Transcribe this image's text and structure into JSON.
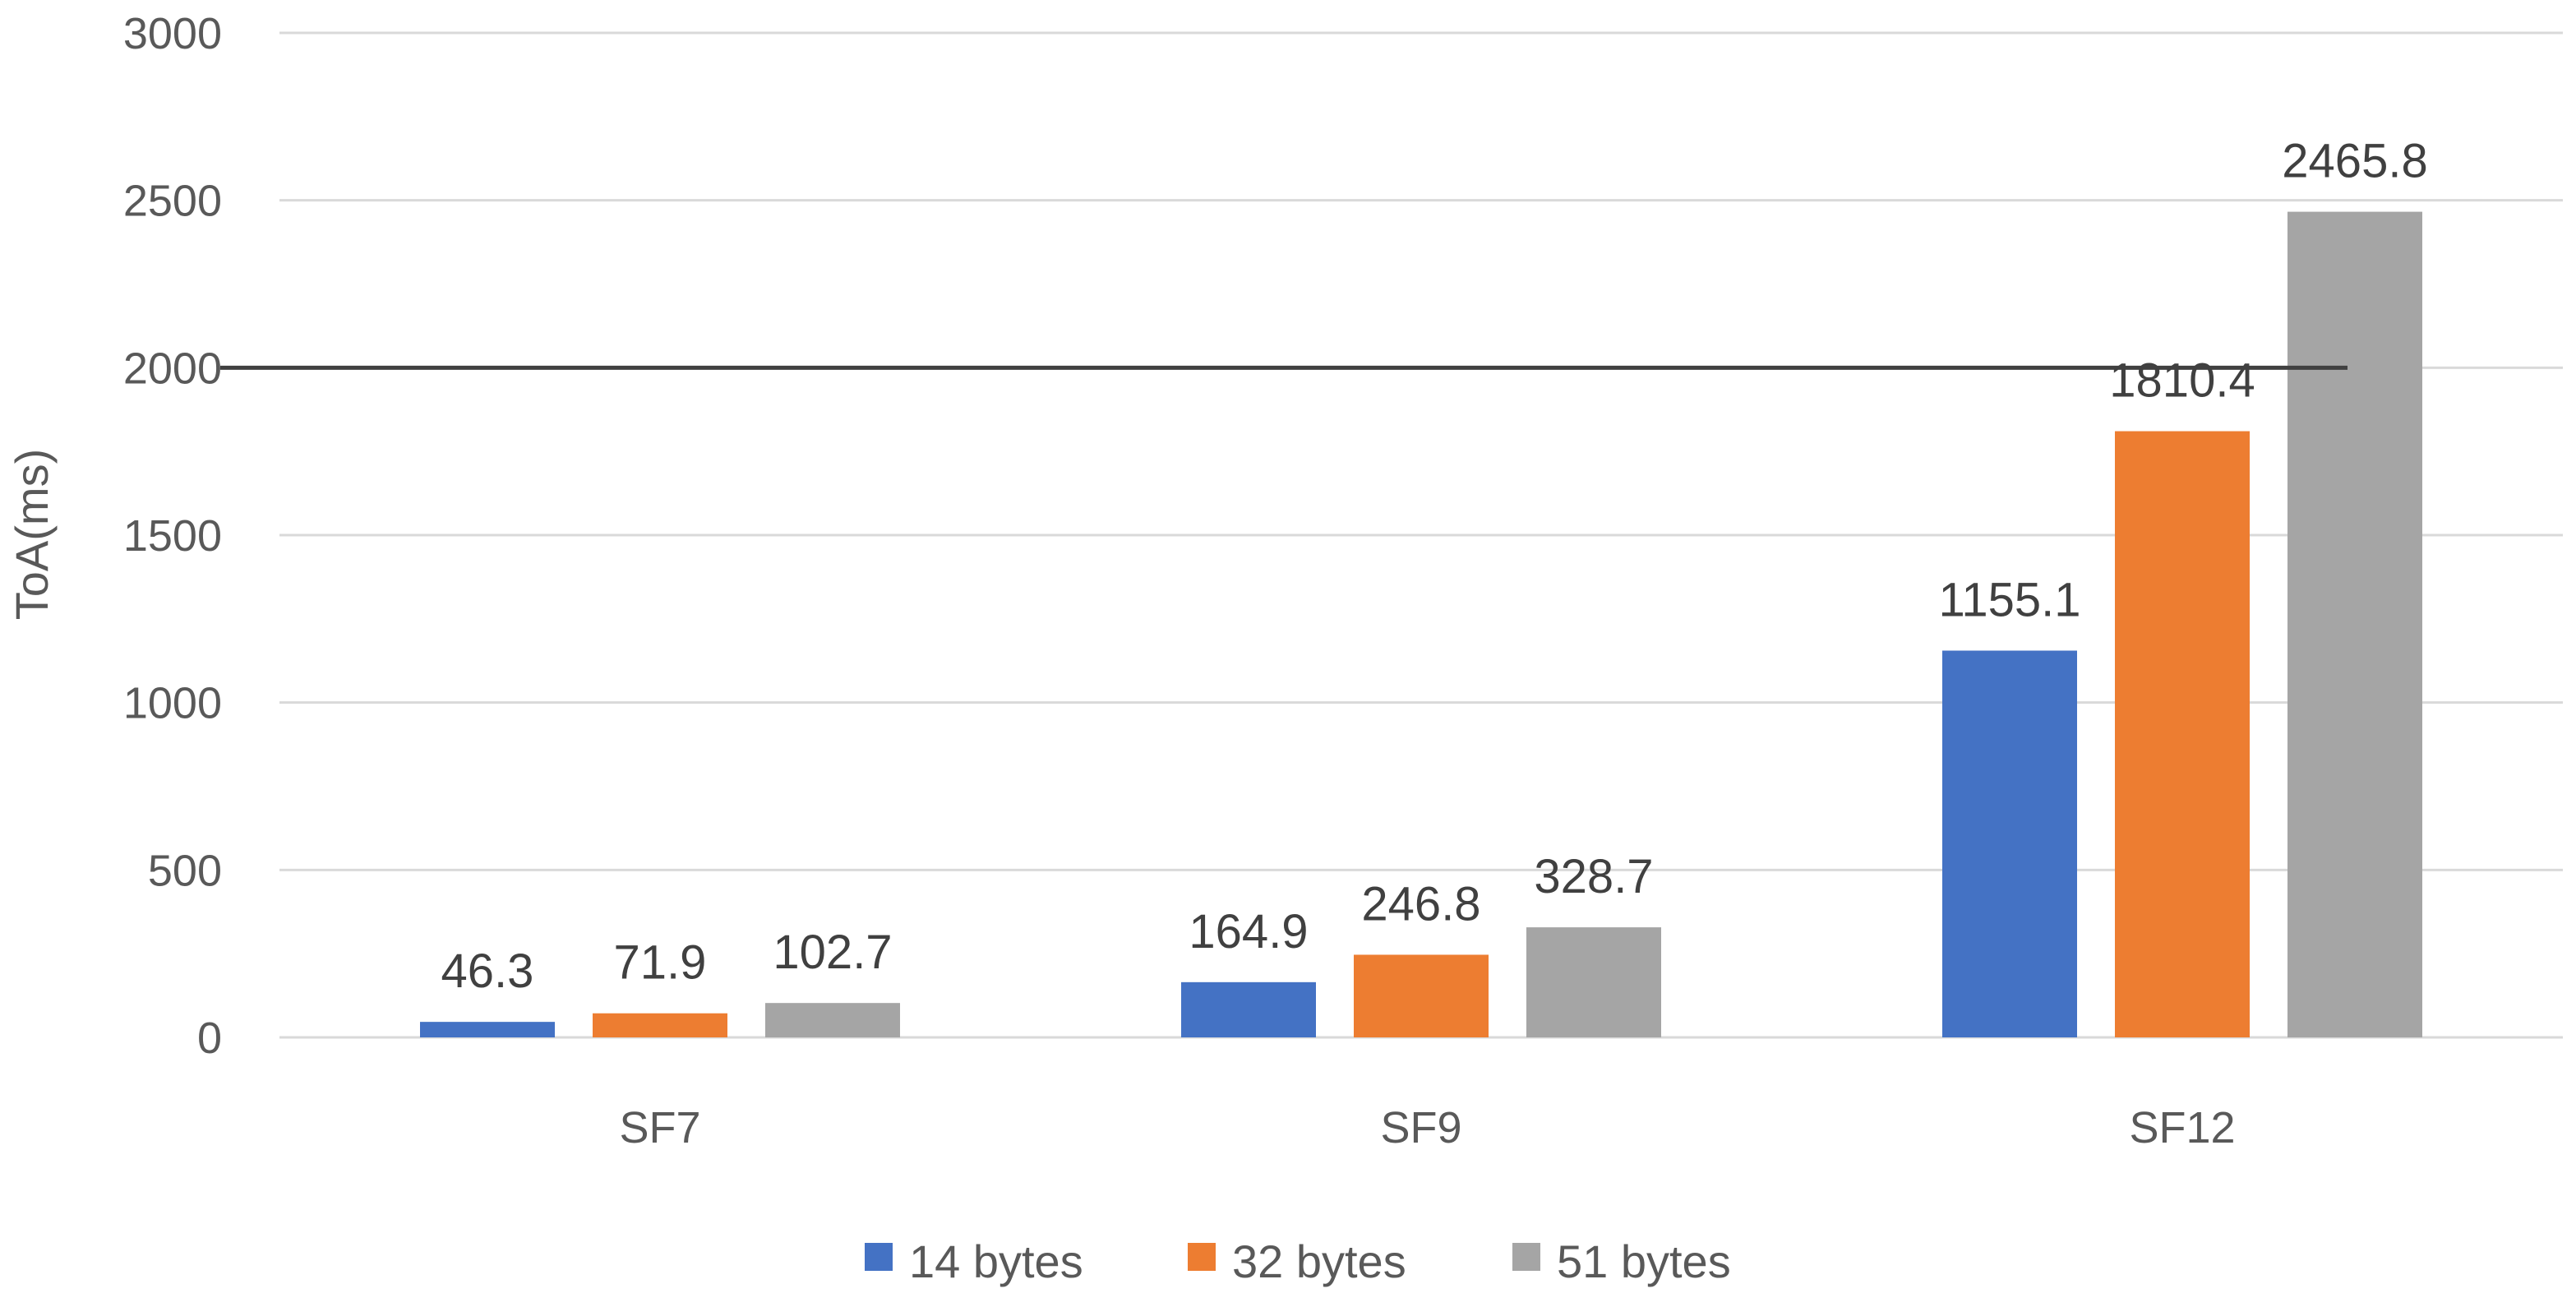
{
  "chart_data": {
    "type": "bar",
    "title": "",
    "xlabel": "",
    "ylabel": "ToA(ms)",
    "categories": [
      "SF7",
      "SF9",
      "SF12"
    ],
    "series": [
      {
        "name": "14 bytes",
        "color": "#4472C4",
        "values": [
          46.3,
          164.9,
          1155.1
        ],
        "labels": [
          "46.3",
          "164.9",
          "1155.1"
        ]
      },
      {
        "name": "32 bytes",
        "color": "#ED7D31",
        "values": [
          71.9,
          246.8,
          1810.4
        ],
        "labels": [
          "71.9",
          "246.8",
          "1810.4"
        ]
      },
      {
        "name": "51 bytes",
        "color": "#A5A5A5",
        "values": [
          102.7,
          328.7,
          2465.8
        ],
        "labels": [
          "102.7",
          "328.7",
          "2465.8"
        ]
      }
    ],
    "ylim": [
      0,
      3000
    ],
    "yticks": [
      0,
      500,
      1000,
      1500,
      2000,
      2500,
      3000
    ],
    "ytick_labels": [
      "0",
      "500",
      "1000",
      "1500",
      "2000",
      "2500",
      "3000"
    ],
    "reference_line": 2000,
    "grid": true,
    "legend": "bottom-center"
  }
}
